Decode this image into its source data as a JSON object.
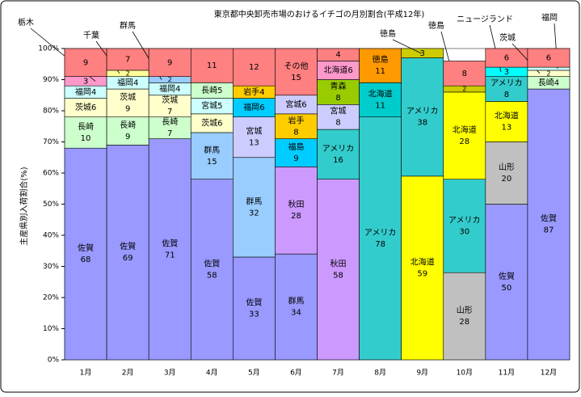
{
  "chart_data": {
    "type": "stacked_bar",
    "title": "東京都中央卸売市場のおけるイチゴの月別割合(平成12年)",
    "y_label": "主産県別入荷割合(%)",
    "ylim": [
      0,
      100
    ],
    "yticks": [
      {
        "value": 0,
        "label": "0%"
      },
      {
        "value": 10,
        "label": "10%"
      },
      {
        "value": 20,
        "label": "20%"
      },
      {
        "value": 30,
        "label": "30%"
      },
      {
        "value": 40,
        "label": "40%"
      },
      {
        "value": 50,
        "label": "50%"
      },
      {
        "value": 60,
        "label": "60%"
      },
      {
        "value": 70,
        "label": "70%"
      },
      {
        "value": 80,
        "label": "80%"
      },
      {
        "value": 90,
        "label": "90%"
      },
      {
        "value": 100,
        "label": "100%"
      }
    ],
    "categories": [
      "1月",
      "2月",
      "3月",
      "4月",
      "5月",
      "6月",
      "7月",
      "8月",
      "9月",
      "10月",
      "11月",
      "12月"
    ],
    "stacks": [
      {
        "segments": [
          {
            "name": "佐賀",
            "value": 68,
            "color": "#9999ff"
          },
          {
            "name": "長崎",
            "value": 10,
            "color": "#ccffcc"
          },
          {
            "name": "茨城",
            "value": 6,
            "color": "#ffffcc"
          },
          {
            "name": "福岡",
            "value": 4,
            "color": "#ccffff"
          },
          {
            "name": "栃木",
            "value": 3,
            "color": "#ff99cc",
            "callout": true
          },
          {
            "value": 9,
            "color": "#ff8080"
          }
        ]
      },
      {
        "segments": [
          {
            "name": "佐賀",
            "value": 69,
            "color": "#9999ff"
          },
          {
            "name": "長崎",
            "value": 9,
            "color": "#ccffcc"
          },
          {
            "name": "茨城",
            "value": 9,
            "color": "#ffffcc"
          },
          {
            "name": "福岡",
            "value": 4,
            "color": "#ccffff"
          },
          {
            "name": "千葉",
            "value": 2,
            "color": "#ffff99",
            "callout": true
          },
          {
            "value": 7,
            "color": "#ff8080"
          }
        ]
      },
      {
        "segments": [
          {
            "name": "佐賀",
            "value": 71,
            "color": "#9999ff"
          },
          {
            "name": "長崎",
            "value": 7,
            "color": "#ccffcc"
          },
          {
            "name": "茨城",
            "value": 7,
            "color": "#ffffcc"
          },
          {
            "name": "福岡",
            "value": 4,
            "color": "#ccffff"
          },
          {
            "name": "群馬",
            "value": 2,
            "color": "#99ccff",
            "callout": true
          },
          {
            "value": 9,
            "color": "#ff8080"
          }
        ]
      },
      {
        "segments": [
          {
            "name": "佐賀",
            "value": 58,
            "color": "#9999ff"
          },
          {
            "name": "群馬",
            "value": 15,
            "color": "#99ccff"
          },
          {
            "name": "茨城",
            "value": 6,
            "color": "#ffffcc"
          },
          {
            "name": "宮城",
            "value": 5,
            "color": "#ccffff"
          },
          {
            "name": "長崎",
            "value": 5,
            "color": "#ccffcc"
          },
          {
            "value": 11,
            "color": "#ff8080"
          }
        ]
      },
      {
        "segments": [
          {
            "name": "佐賀",
            "value": 33,
            "color": "#9999ff"
          },
          {
            "name": "群馬",
            "value": 32,
            "color": "#99ccff"
          },
          {
            "name": "宮城",
            "value": 13,
            "color": "#ccccff"
          },
          {
            "name": "福岡",
            "value": 6,
            "color": "#00ccff"
          },
          {
            "name": "岩手",
            "value": 4,
            "color": "#ffcc00"
          },
          {
            "value": 12,
            "color": "#ff8080"
          }
        ]
      },
      {
        "segments": [
          {
            "name": "群馬",
            "value": 34,
            "color": "#9999ff"
          },
          {
            "name": "秋田",
            "value": 28,
            "color": "#cc99ff"
          },
          {
            "name": "福島",
            "value": 9,
            "color": "#00ccff"
          },
          {
            "name": "岩手",
            "value": 8,
            "color": "#ffcc00"
          },
          {
            "name": "宮城",
            "value": 6,
            "color": "#ccccff"
          },
          {
            "name": "その他",
            "value": 15,
            "color": "#ff8080"
          }
        ]
      },
      {
        "segments": [
          {
            "name": "秋田",
            "value": 58,
            "color": "#cc99ff"
          },
          {
            "name": "アメリカ",
            "value": 16,
            "color": "#33cccc"
          },
          {
            "name": "宮城",
            "value": 8,
            "color": "#ccccff"
          },
          {
            "name": "青森",
            "value": 8,
            "color": "#99cc00"
          },
          {
            "name": "北海道",
            "value": 6,
            "color": "#ff99cc"
          },
          {
            "value": 4,
            "color": "#ff8080"
          }
        ]
      },
      {
        "segments": [
          {
            "name": "アメリカ",
            "value": 78,
            "color": "#33cccc"
          },
          {
            "name": "北海道",
            "value": 11,
            "color": "#00cccc"
          },
          {
            "name": "徳島",
            "value": 11,
            "color": "#ff9900"
          }
        ]
      },
      {
        "segments": [
          {
            "name": "北海道",
            "value": 59,
            "color": "#ffff00"
          },
          {
            "name": "アメリカ",
            "value": 38,
            "color": "#33cccc"
          },
          {
            "name": "徳島",
            "value": 3,
            "color": "#cccc00",
            "callout": true
          }
        ]
      },
      {
        "segments": [
          {
            "name": "山形",
            "value": 28,
            "color": "#c0c0c0"
          },
          {
            "name": "アメリカ",
            "value": 30,
            "color": "#33cccc"
          },
          {
            "name": "北海道",
            "value": 28,
            "color": "#ffff00"
          },
          {
            "name": "徳島",
            "value": 2,
            "color": "#cccc00",
            "callout": true
          },
          {
            "value": 8,
            "color": "#ff8080"
          }
        ]
      },
      {
        "segments": [
          {
            "name": "佐賀",
            "value": 50,
            "color": "#9999ff"
          },
          {
            "name": "山形",
            "value": 20,
            "color": "#c0c0c0"
          },
          {
            "name": "北海道",
            "value": 13,
            "color": "#ffff00"
          },
          {
            "name": "アメリカ",
            "value": 8,
            "color": "#33cccc"
          },
          {
            "name": "ニュージランド",
            "value": 3,
            "color": "#00ffff",
            "callout": true
          },
          {
            "value": 6,
            "color": "#ff8080"
          }
        ]
      },
      {
        "segments": [
          {
            "name": "佐賀",
            "value": 87,
            "color": "#9999ff"
          },
          {
            "name": "長崎",
            "value": 4,
            "color": "#ccffcc"
          },
          {
            "name": "茨城",
            "value": 2,
            "color": "#ffffcc",
            "callout": true
          },
          {
            "name": "福岡",
            "value": 1,
            "color": "#ccffff",
            "callout": true,
            "hide_value": true
          },
          {
            "value": 6,
            "color": "#ff8080"
          }
        ]
      }
    ]
  }
}
